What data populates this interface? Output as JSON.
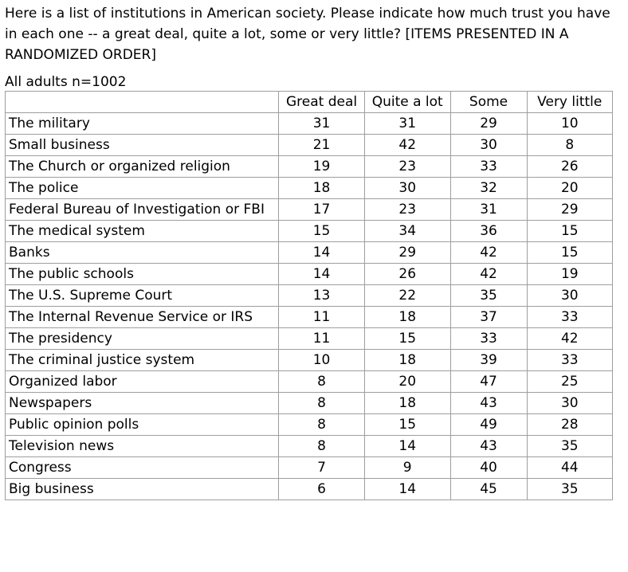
{
  "question": "Here is a list of institutions in American society. Please indicate how much trust you have in each one -- a great deal, quite a lot, some or very little? [ITEMS PRESENTED IN A RANDOMIZED ORDER]",
  "sample": "All adults n=1002",
  "chart_data": {
    "type": "table",
    "columns": [
      "Great deal",
      "Quite a lot",
      "Some",
      "Very little"
    ],
    "rows": [
      {
        "label": "The military",
        "values": [
          31,
          31,
          29,
          10
        ]
      },
      {
        "label": "Small business",
        "values": [
          21,
          42,
          30,
          8
        ]
      },
      {
        "label": "The Church or organized religion",
        "values": [
          19,
          23,
          33,
          26
        ]
      },
      {
        "label": "The police",
        "values": [
          18,
          30,
          32,
          20
        ]
      },
      {
        "label": "Federal Bureau of Investigation or FBI",
        "values": [
          17,
          23,
          31,
          29
        ]
      },
      {
        "label": "The medical system",
        "values": [
          15,
          34,
          36,
          15
        ]
      },
      {
        "label": "Banks",
        "values": [
          14,
          29,
          42,
          15
        ]
      },
      {
        "label": "The public schools",
        "values": [
          14,
          26,
          42,
          19
        ]
      },
      {
        "label": "The U.S. Supreme Court",
        "values": [
          13,
          22,
          35,
          30
        ]
      },
      {
        "label": "The Internal Revenue Service or IRS",
        "values": [
          11,
          18,
          37,
          33
        ]
      },
      {
        "label": "The presidency",
        "values": [
          11,
          15,
          33,
          42
        ]
      },
      {
        "label": "The criminal justice system",
        "values": [
          10,
          18,
          39,
          33
        ]
      },
      {
        "label": "Organized labor",
        "values": [
          8,
          20,
          47,
          25
        ]
      },
      {
        "label": "Newspapers",
        "values": [
          8,
          18,
          43,
          30
        ]
      },
      {
        "label": "Public opinion polls",
        "values": [
          8,
          15,
          49,
          28
        ]
      },
      {
        "label": "Television news",
        "values": [
          8,
          14,
          43,
          35
        ]
      },
      {
        "label": "Congress",
        "values": [
          7,
          9,
          40,
          44
        ]
      },
      {
        "label": "Big business",
        "values": [
          6,
          14,
          45,
          35
        ]
      }
    ]
  }
}
